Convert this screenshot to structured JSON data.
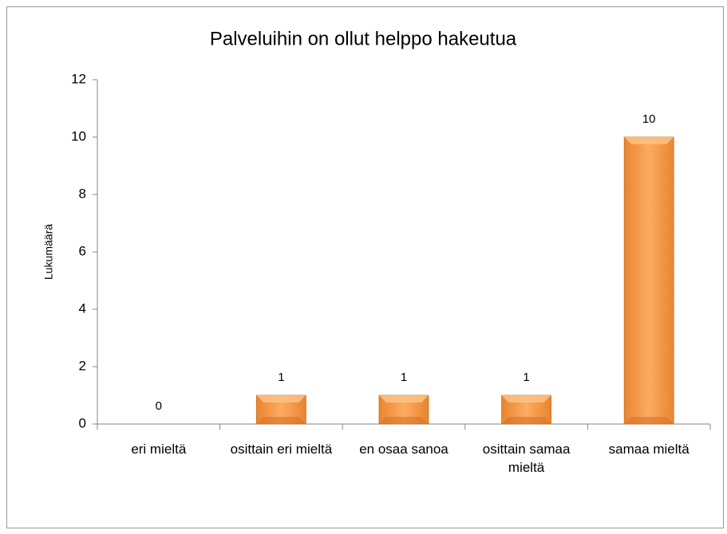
{
  "chart_data": {
    "type": "bar",
    "title": "Palveluihin on ollut helppo hakeutua",
    "y_label": "Lukumäärä",
    "categories": [
      "eri mieltä",
      "osittain eri mieltä",
      "en osaa sanoa",
      "osittain samaa mieltä",
      "samaa mieltä"
    ],
    "values": [
      0,
      1,
      1,
      1,
      10
    ],
    "color": "#f79646",
    "ylim": [
      0,
      12
    ],
    "yticks": [
      0,
      2,
      4,
      6,
      8,
      10,
      12
    ],
    "grid": false
  }
}
